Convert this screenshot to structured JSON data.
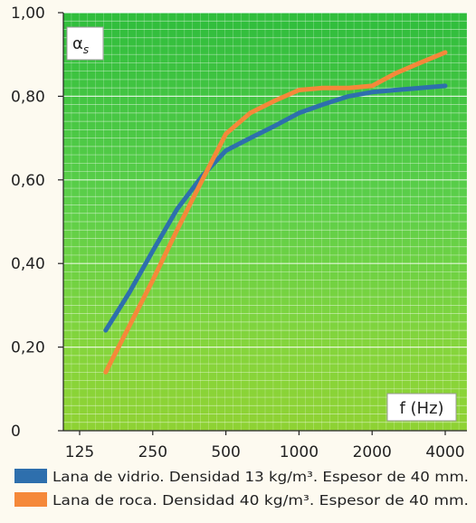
{
  "chart_data": {
    "type": "line",
    "title": "",
    "ylabel": "α",
    "ylabel_subscript": "s",
    "xlabel": "f (Hz)",
    "ylim": [
      0,
      1.0
    ],
    "y_ticks": [
      "0",
      "0,20",
      "0,40",
      "0,60",
      "0,80",
      "1,00"
    ],
    "y_tick_values": [
      0,
      0.2,
      0.4,
      0.6,
      0.8,
      1.0
    ],
    "x_scale": "log2",
    "x_ticks": [
      "125",
      "250",
      "500",
      "1000",
      "2000",
      "4000"
    ],
    "x_tick_values": [
      125,
      250,
      500,
      1000,
      2000,
      4000
    ],
    "grid": true,
    "legend_position": "bottom",
    "series": [
      {
        "name": "Lana de vidrio. Densidad 13 kg/m³. Espesor de 40 mm.",
        "color": "#2e6fad",
        "x": [
          160,
          200,
          250,
          315,
          400,
          500,
          630,
          800,
          1000,
          1250,
          1600,
          2000,
          2500,
          3150,
          4000
        ],
        "y": [
          0.24,
          0.33,
          0.43,
          0.53,
          0.61,
          0.67,
          0.7,
          0.73,
          0.76,
          0.78,
          0.8,
          0.81,
          0.815,
          0.82,
          0.825
        ]
      },
      {
        "name": "Lana de roca. Densidad 40 kg/m³. Espesor de 40 mm.",
        "color": "#f5883a",
        "x": [
          160,
          200,
          250,
          315,
          400,
          500,
          630,
          800,
          1000,
          1250,
          1600,
          2000,
          2500,
          3150,
          4000
        ],
        "y": [
          0.14,
          0.25,
          0.36,
          0.48,
          0.6,
          0.71,
          0.76,
          0.79,
          0.815,
          0.82,
          0.82,
          0.825,
          0.855,
          0.88,
          0.905
        ]
      }
    ]
  }
}
